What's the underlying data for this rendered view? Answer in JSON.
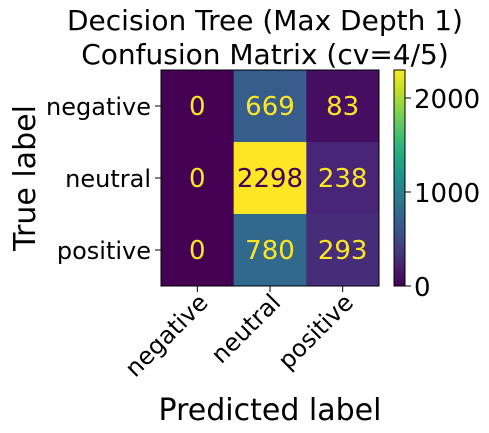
{
  "chart_data": {
    "type": "heatmap",
    "title_lines": [
      "Decision Tree (Max Depth 1)",
      "Confusion Matrix (cv=4/5)"
    ],
    "xlabel": "Predicted label",
    "ylabel": "True label",
    "x_categories": [
      "negative",
      "neutral",
      "positive"
    ],
    "y_categories": [
      "negative",
      "neutral",
      "positive"
    ],
    "values": [
      [
        0,
        669,
        83
      ],
      [
        0,
        2298,
        238
      ],
      [
        0,
        780,
        293
      ]
    ],
    "colormap": "viridis",
    "colorbar": {
      "range": [
        0,
        2298
      ],
      "ticks": [
        0,
        1000,
        2000
      ]
    },
    "text_color_light": "#fde725",
    "text_color_dark": "#440154"
  }
}
